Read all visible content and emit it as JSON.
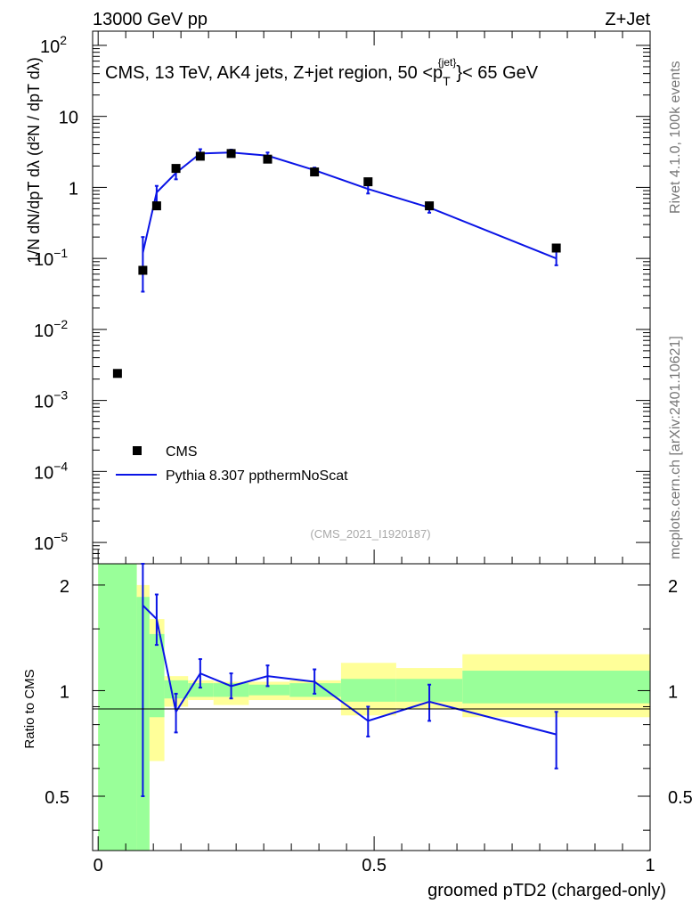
{
  "header": {
    "left": "13000 GeV pp",
    "right": "Z+Jet"
  },
  "side_labels": {
    "rivet": "Rivet 4.1.0,  100k events",
    "mcplots": "mcplots.cern.ch [arXiv:2401.10621]"
  },
  "upper_title": {
    "main": "CMS, 13 TeV, AK4 jets, Z+jet region, 50 <p",
    "sub": "T",
    "sup": "{jet}",
    "tail": "}< 65 GeV"
  },
  "ylabel_upper": "1/N dN/dpT dλ (d²N / dpT dλ)",
  "ylabel_ratio": "Ratio to CMS",
  "xlabel": "groomed pTD2 (charged-only)",
  "watermark": "(CMS_2021_I1920187)",
  "legend": {
    "data": "CMS",
    "mc": "Pythia 8.307 ppthermNoScat"
  },
  "colors": {
    "mc": "#0a14e6",
    "green": "#99ff99",
    "yellow": "#ffff99",
    "data": "#000000"
  },
  "chart_data": {
    "type": "scatter",
    "x_range": [
      -0.01,
      1.0
    ],
    "y_range_log": [
      -5.3,
      2.2
    ],
    "ratio_range": [
      0.35,
      2.3
    ],
    "x_ticks": [
      {
        "v": 0,
        "label": "0"
      },
      {
        "v": 0.5,
        "label": "0.5"
      },
      {
        "v": 1,
        "label": "1"
      }
    ],
    "y_ticks": [
      {
        "e": 2,
        "label": "10",
        "sup": "2"
      },
      {
        "e": 1,
        "label": "10",
        "sup": ""
      },
      {
        "e": 0,
        "label": "1",
        "sup": ""
      },
      {
        "e": -1,
        "label": "10",
        "sup": "−1"
      },
      {
        "e": -2,
        "label": "10",
        "sup": "−2"
      },
      {
        "e": -3,
        "label": "10",
        "sup": "−3"
      },
      {
        "e": -4,
        "label": "10",
        "sup": "−4"
      },
      {
        "e": -5,
        "label": "10",
        "sup": "−5"
      }
    ],
    "ratio_ticks": [
      {
        "v": 0.5,
        "label": "0.5"
      },
      {
        "v": 1,
        "label": "1"
      },
      {
        "v": 2,
        "label": "2"
      }
    ],
    "cms": {
      "x": [
        0.035,
        0.081,
        0.106,
        0.141,
        0.185,
        0.241,
        0.307,
        0.392,
        0.489,
        0.6,
        0.83
      ],
      "y": [
        0.0024,
        0.068,
        0.55,
        1.85,
        2.75,
        3.0,
        2.5,
        1.65,
        1.2,
        0.55,
        0.14
      ]
    },
    "pythia": {
      "x": [
        0.081,
        0.106,
        0.141,
        0.185,
        0.241,
        0.307,
        0.392,
        0.489,
        0.6,
        0.83
      ],
      "y": [
        0.12,
        0.85,
        1.6,
        3.0,
        3.1,
        2.8,
        1.75,
        0.95,
        0.52,
        0.1
      ],
      "err_low": [
        0.034,
        0.55,
        1.3,
        2.6,
        2.8,
        2.5,
        1.6,
        0.82,
        0.44,
        0.08
      ],
      "err_high": [
        0.2,
        1.05,
        1.9,
        3.45,
        3.4,
        3.1,
        1.9,
        1.1,
        0.6,
        0.125
      ]
    },
    "ratio": {
      "x": [
        0.081,
        0.106,
        0.141,
        0.185,
        0.241,
        0.307,
        0.392,
        0.489,
        0.6,
        0.83
      ],
      "y": [
        1.75,
        1.6,
        0.87,
        1.12,
        1.03,
        1.1,
        1.06,
        0.82,
        0.93,
        0.75
      ],
      "err_low": [
        0.5,
        1.35,
        0.76,
        1.02,
        0.95,
        1.03,
        0.98,
        0.74,
        0.82,
        0.6
      ],
      "err_high": [
        2.6,
        1.88,
        0.98,
        1.23,
        1.12,
        1.18,
        1.15,
        0.9,
        1.04,
        0.87
      ]
    },
    "bands": [
      {
        "x0": 0.0,
        "x1": 0.07,
        "g_lo": 0.3,
        "g_hi": 2.4,
        "y_lo": 0.3,
        "y_hi": 2.4
      },
      {
        "x0": 0.07,
        "x1": 0.093,
        "g_lo": 0.3,
        "g_hi": 1.85,
        "y_lo": 0.3,
        "y_hi": 2.0
      },
      {
        "x0": 0.093,
        "x1": 0.12,
        "g_lo": 0.84,
        "g_hi": 1.45,
        "y_lo": 0.63,
        "y_hi": 1.6
      },
      {
        "x0": 0.12,
        "x1": 0.163,
        "g_lo": 0.95,
        "g_hi": 1.07,
        "y_lo": 0.9,
        "y_hi": 1.1
      },
      {
        "x0": 0.163,
        "x1": 0.209,
        "g_lo": 0.96,
        "g_hi": 1.05,
        "y_lo": 0.94,
        "y_hi": 1.07
      },
      {
        "x0": 0.209,
        "x1": 0.273,
        "g_lo": 0.96,
        "g_hi": 1.05,
        "y_lo": 0.91,
        "y_hi": 1.06
      },
      {
        "x0": 0.273,
        "x1": 0.347,
        "g_lo": 0.97,
        "g_hi": 1.04,
        "y_lo": 0.94,
        "y_hi": 1.06
      },
      {
        "x0": 0.347,
        "x1": 0.44,
        "g_lo": 0.96,
        "g_hi": 1.05,
        "y_lo": 0.94,
        "y_hi": 1.07
      },
      {
        "x0": 0.44,
        "x1": 0.54,
        "g_lo": 0.93,
        "g_hi": 1.08,
        "y_lo": 0.85,
        "y_hi": 1.2
      },
      {
        "x0": 0.54,
        "x1": 0.66,
        "g_lo": 0.93,
        "g_hi": 1.08,
        "y_lo": 0.89,
        "y_hi": 1.16
      },
      {
        "x0": 0.66,
        "x1": 1.0,
        "g_lo": 0.92,
        "g_hi": 1.14,
        "y_lo": 0.84,
        "y_hi": 1.27
      }
    ]
  }
}
